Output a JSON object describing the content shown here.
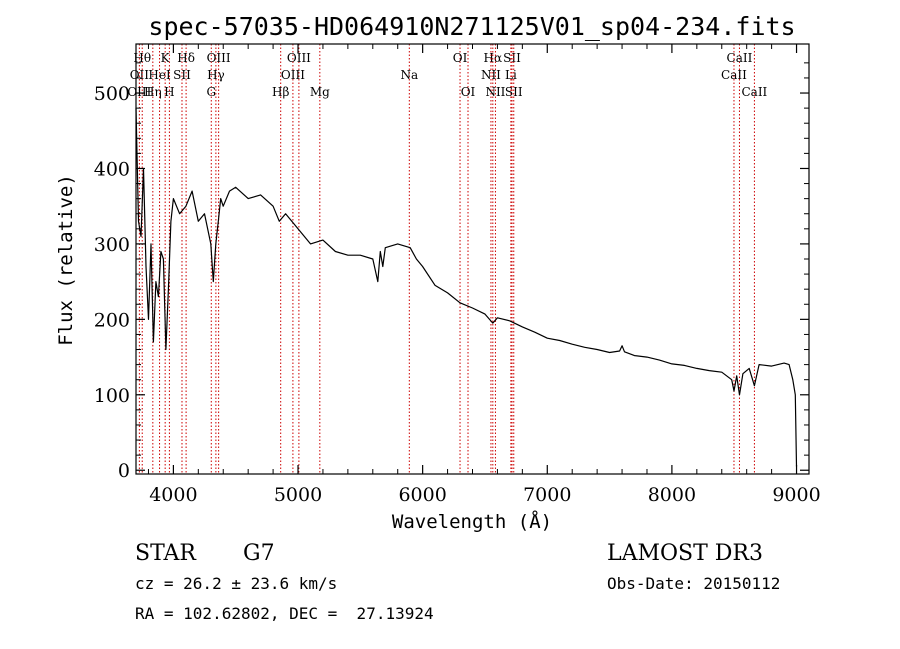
{
  "chart_data": {
    "type": "line",
    "title": "spec-57035-HD064910N271125V01_sp04-234.fits",
    "xlabel": "Wavelength (Å)",
    "ylabel": "Flux (relative)",
    "xlim": [
      3700,
      9100
    ],
    "ylim": [
      -5,
      565
    ],
    "x_ticks": [
      4000,
      5000,
      6000,
      7000,
      8000,
      9000
    ],
    "y_ticks": [
      0,
      100,
      200,
      300,
      400,
      500
    ],
    "x_tick_labels": [
      "4000",
      "5000",
      "6000",
      "7000",
      "8000",
      "9000"
    ],
    "y_tick_labels": [
      "0",
      "100",
      "200",
      "300",
      "400",
      "500"
    ],
    "series": [
      {
        "name": "flux",
        "x": [
          3700,
          3720,
          3740,
          3760,
          3780,
          3800,
          3820,
          3840,
          3860,
          3880,
          3900,
          3920,
          3940,
          3960,
          3980,
          4000,
          4050,
          4100,
          4150,
          4200,
          4250,
          4300,
          4320,
          4340,
          4360,
          4380,
          4400,
          4450,
          4500,
          4600,
          4700,
          4800,
          4850,
          4900,
          5000,
          5100,
          5200,
          5300,
          5400,
          5500,
          5600,
          5640,
          5660,
          5680,
          5700,
          5800,
          5900,
          5950,
          6000,
          6100,
          6200,
          6300,
          6400,
          6500,
          6563,
          6600,
          6700,
          6800,
          6900,
          7000,
          7100,
          7200,
          7300,
          7400,
          7500,
          7580,
          7600,
          7620,
          7700,
          7800,
          7900,
          8000,
          8100,
          8200,
          8300,
          8400,
          8480,
          8498,
          8520,
          8542,
          8570,
          8620,
          8662,
          8700,
          8800,
          8900,
          8940,
          8970,
          8990,
          9000
        ],
        "y": [
          480,
          330,
          310,
          400,
          270,
          200,
          300,
          170,
          250,
          230,
          290,
          280,
          160,
          240,
          330,
          360,
          340,
          350,
          370,
          330,
          340,
          300,
          250,
          300,
          330,
          360,
          350,
          370,
          375,
          360,
          365,
          350,
          330,
          340,
          320,
          300,
          305,
          290,
          285,
          285,
          280,
          250,
          290,
          270,
          295,
          300,
          295,
          280,
          270,
          245,
          235,
          222,
          215,
          207,
          195,
          202,
          198,
          190,
          183,
          175,
          172,
          167,
          163,
          160,
          156,
          158,
          165,
          157,
          152,
          150,
          146,
          141,
          139,
          135,
          132,
          130,
          120,
          105,
          125,
          100,
          128,
          135,
          112,
          140,
          138,
          142,
          140,
          120,
          100,
          5
        ]
      }
    ],
    "line_markers": [
      {
        "label": "OII",
        "x": 3727,
        "row": 2
      },
      {
        "label": "OIII",
        "x": 3727,
        "row": 3
      },
      {
        "label": "Hθ",
        "x": 3750,
        "row": 1
      },
      {
        "label": "Hη",
        "x": 3835,
        "row": 3
      },
      {
        "label": "HeI",
        "x": 3889,
        "row": 2
      },
      {
        "label": "K",
        "x": 3934,
        "row": 1
      },
      {
        "label": "SII",
        "x": 4069,
        "row": 2
      },
      {
        "label": "H",
        "x": 3968,
        "row": 3
      },
      {
        "label": "Hδ",
        "x": 4102,
        "row": 1
      },
      {
        "label": "OIII",
        "x": 4363,
        "row": 1
      },
      {
        "label": "Hγ",
        "x": 4341,
        "row": 2
      },
      {
        "label": "G",
        "x": 4304,
        "row": 3
      },
      {
        "label": "Hβ",
        "x": 4861,
        "row": 3
      },
      {
        "label": "OIII",
        "x": 5007,
        "row": 1
      },
      {
        "label": "OIII",
        "x": 4959,
        "row": 2
      },
      {
        "label": "Mg",
        "x": 5175,
        "row": 3
      },
      {
        "label": "Na",
        "x": 5893,
        "row": 2
      },
      {
        "label": "OI",
        "x": 6300,
        "row": 1
      },
      {
        "label": "OI",
        "x": 6364,
        "row": 3
      },
      {
        "label": "Hα",
        "x": 6563,
        "row": 1
      },
      {
        "label": "NII",
        "x": 6548,
        "row": 2
      },
      {
        "label": "NII",
        "x": 6584,
        "row": 3
      },
      {
        "label": "SII",
        "x": 6717,
        "row": 1
      },
      {
        "label": "Li",
        "x": 6708,
        "row": 2
      },
      {
        "label": "SII",
        "x": 6731,
        "row": 3
      },
      {
        "label": "CaII",
        "x": 8542,
        "row": 1
      },
      {
        "label": "CaII",
        "x": 8498,
        "row": 2
      },
      {
        "label": "CaII",
        "x": 8662,
        "row": 3
      }
    ]
  },
  "info": {
    "object_class": "STAR",
    "subclass": "G7",
    "survey": "LAMOST DR3",
    "redshift_line": "cz = 26.2 ± 23.6 km/s",
    "obs_date": "Obs-Date: 20150112",
    "coordinates": "RA = 102.62802, DEC =  27.13924"
  },
  "colors": {
    "spectrum": "#000000",
    "markers": "#cc0000",
    "axes": "#000000"
  }
}
